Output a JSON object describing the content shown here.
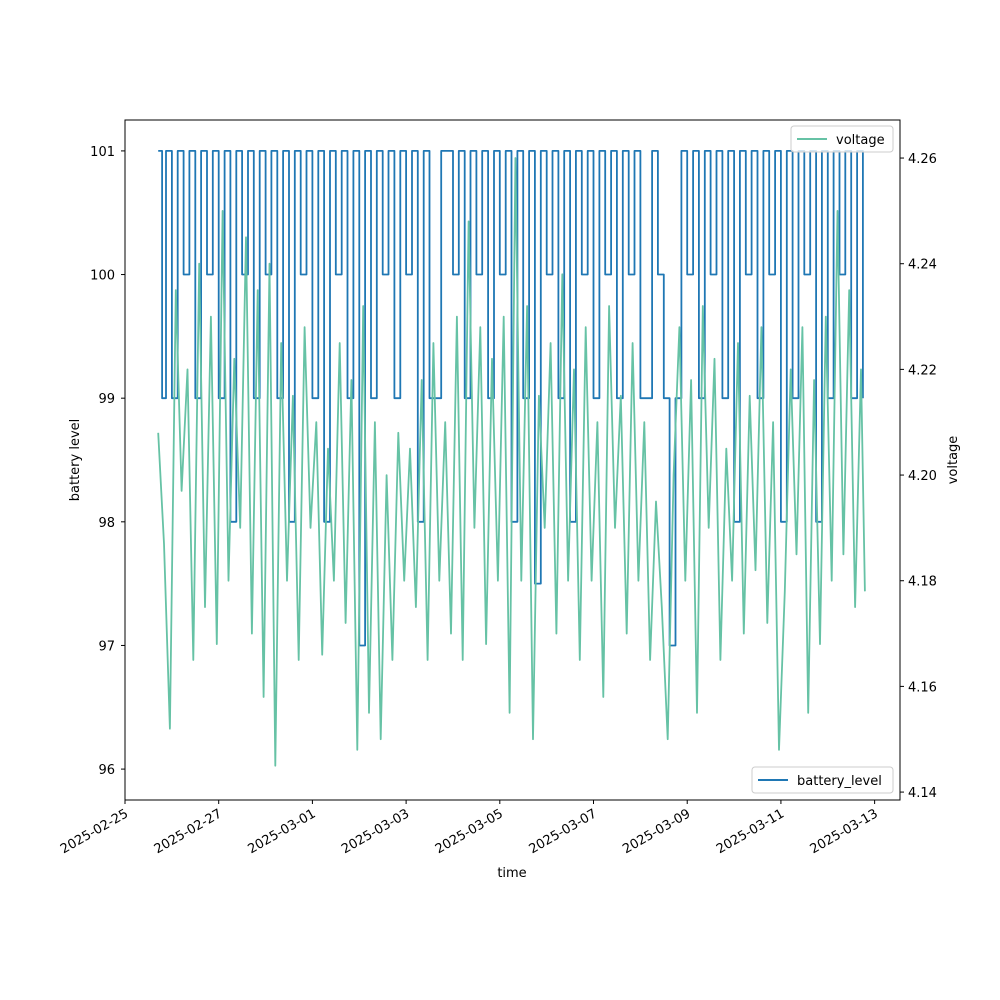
{
  "chart_data": {
    "type": "line",
    "title": "",
    "xlabel": "time",
    "x_tick_labels": [
      "2025-02-25",
      "2025-02-27",
      "2025-03-01",
      "2025-03-03",
      "2025-03-05",
      "2025-03-07",
      "2025-03-09",
      "2025-03-11",
      "2025-03-13"
    ],
    "x_range": [
      "2025-02-25T00:00",
      "2025-03-13T13:00"
    ],
    "left_axis": {
      "label": "battery level",
      "ylim": [
        95.75,
        101.25
      ],
      "ticks": [
        "96",
        "97",
        "98",
        "99",
        "100",
        "101"
      ]
    },
    "right_axis": {
      "label": "voltage",
      "ylim": [
        4.1385,
        4.2672
      ],
      "ticks": [
        "4.14",
        "4.16",
        "4.18",
        "4.20",
        "4.22",
        "4.24",
        "4.26"
      ]
    },
    "series": [
      {
        "name": "battery_level",
        "axis": "left",
        "color": "#1f77b4",
        "legend_position": "lower-right",
        "data": [
          [
            "2025-02-25T17:00",
            101
          ],
          [
            "2025-02-25T19:00",
            99
          ],
          [
            "2025-02-25T21:00",
            101
          ],
          [
            "2025-02-26T00:00",
            99
          ],
          [
            "2025-02-26T03:00",
            101
          ],
          [
            "2025-02-26T06:00",
            100
          ],
          [
            "2025-02-26T09:00",
            101
          ],
          [
            "2025-02-26T12:00",
            99
          ],
          [
            "2025-02-26T15:00",
            101
          ],
          [
            "2025-02-26T18:00",
            100
          ],
          [
            "2025-02-26T21:00",
            101
          ],
          [
            "2025-02-27T00:00",
            99
          ],
          [
            "2025-02-27T03:00",
            101
          ],
          [
            "2025-02-27T06:00",
            98
          ],
          [
            "2025-02-27T09:00",
            101
          ],
          [
            "2025-02-27T12:00",
            100
          ],
          [
            "2025-02-27T15:00",
            101
          ],
          [
            "2025-02-27T18:00",
            99
          ],
          [
            "2025-02-27T21:00",
            101
          ],
          [
            "2025-02-28T00:00",
            100
          ],
          [
            "2025-02-28T03:00",
            101
          ],
          [
            "2025-02-28T06:00",
            99
          ],
          [
            "2025-02-28T09:00",
            101
          ],
          [
            "2025-02-28T12:00",
            98
          ],
          [
            "2025-02-28T15:00",
            101
          ],
          [
            "2025-02-28T18:00",
            100
          ],
          [
            "2025-02-28T21:00",
            101
          ],
          [
            "2025-03-01T00:00",
            99
          ],
          [
            "2025-03-01T03:00",
            101
          ],
          [
            "2025-03-01T06:00",
            98
          ],
          [
            "2025-03-01T09:00",
            101
          ],
          [
            "2025-03-01T12:00",
            100
          ],
          [
            "2025-03-01T15:00",
            101
          ],
          [
            "2025-03-01T18:00",
            99
          ],
          [
            "2025-03-01T21:00",
            101
          ],
          [
            "2025-03-02T00:00",
            97
          ],
          [
            "2025-03-02T03:00",
            101
          ],
          [
            "2025-03-02T06:00",
            99
          ],
          [
            "2025-03-02T09:00",
            101
          ],
          [
            "2025-03-02T12:00",
            100
          ],
          [
            "2025-03-02T15:00",
            101
          ],
          [
            "2025-03-02T18:00",
            99
          ],
          [
            "2025-03-02T21:00",
            101
          ],
          [
            "2025-03-03T00:00",
            100
          ],
          [
            "2025-03-03T03:00",
            101
          ],
          [
            "2025-03-03T06:00",
            98
          ],
          [
            "2025-03-03T09:00",
            101
          ],
          [
            "2025-03-03T12:00",
            99
          ],
          [
            "2025-03-03T18:00",
            101
          ],
          [
            "2025-03-04T00:00",
            100
          ],
          [
            "2025-03-04T03:00",
            101
          ],
          [
            "2025-03-04T06:00",
            99
          ],
          [
            "2025-03-04T09:00",
            101
          ],
          [
            "2025-03-04T12:00",
            100
          ],
          [
            "2025-03-04T15:00",
            101
          ],
          [
            "2025-03-04T18:00",
            99
          ],
          [
            "2025-03-04T21:00",
            101
          ],
          [
            "2025-03-05T00:00",
            100
          ],
          [
            "2025-03-05T03:00",
            101
          ],
          [
            "2025-03-05T06:00",
            98
          ],
          [
            "2025-03-05T09:00",
            101
          ],
          [
            "2025-03-05T12:00",
            99
          ],
          [
            "2025-03-05T15:00",
            101
          ],
          [
            "2025-03-05T18:00",
            97.5
          ],
          [
            "2025-03-05T21:00",
            101
          ],
          [
            "2025-03-06T00:00",
            100
          ],
          [
            "2025-03-06T03:00",
            101
          ],
          [
            "2025-03-06T06:00",
            99
          ],
          [
            "2025-03-06T09:00",
            101
          ],
          [
            "2025-03-06T12:00",
            98
          ],
          [
            "2025-03-06T15:00",
            101
          ],
          [
            "2025-03-06T18:00",
            100
          ],
          [
            "2025-03-06T21:00",
            101
          ],
          [
            "2025-03-07T00:00",
            99
          ],
          [
            "2025-03-07T03:00",
            101
          ],
          [
            "2025-03-07T06:00",
            100
          ],
          [
            "2025-03-07T09:00",
            101
          ],
          [
            "2025-03-07T12:00",
            99
          ],
          [
            "2025-03-07T15:00",
            101
          ],
          [
            "2025-03-07T18:00",
            100
          ],
          [
            "2025-03-07T21:00",
            101
          ],
          [
            "2025-03-08T00:00",
            99
          ],
          [
            "2025-03-08T06:00",
            101
          ],
          [
            "2025-03-08T09:00",
            100
          ],
          [
            "2025-03-08T12:00",
            99
          ],
          [
            "2025-03-08T15:00",
            97
          ],
          [
            "2025-03-08T18:00",
            99
          ],
          [
            "2025-03-08T21:00",
            101
          ],
          [
            "2025-03-09T00:00",
            100
          ],
          [
            "2025-03-09T03:00",
            101
          ],
          [
            "2025-03-09T06:00",
            99
          ],
          [
            "2025-03-09T09:00",
            101
          ],
          [
            "2025-03-09T12:00",
            100
          ],
          [
            "2025-03-09T15:00",
            101
          ],
          [
            "2025-03-09T18:00",
            99
          ],
          [
            "2025-03-09T21:00",
            101
          ],
          [
            "2025-03-10T00:00",
            98
          ],
          [
            "2025-03-10T03:00",
            101
          ],
          [
            "2025-03-10T06:00",
            100
          ],
          [
            "2025-03-10T09:00",
            101
          ],
          [
            "2025-03-10T12:00",
            99
          ],
          [
            "2025-03-10T15:00",
            101
          ],
          [
            "2025-03-10T18:00",
            100
          ],
          [
            "2025-03-10T21:00",
            101
          ],
          [
            "2025-03-11T00:00",
            98
          ],
          [
            "2025-03-11T03:00",
            101
          ],
          [
            "2025-03-11T06:00",
            99
          ],
          [
            "2025-03-11T09:00",
            101
          ],
          [
            "2025-03-11T12:00",
            100
          ],
          [
            "2025-03-11T15:00",
            101
          ],
          [
            "2025-03-11T18:00",
            98
          ],
          [
            "2025-03-11T21:00",
            101
          ],
          [
            "2025-03-12T00:00",
            99
          ],
          [
            "2025-03-12T03:00",
            101
          ],
          [
            "2025-03-12T06:00",
            100
          ],
          [
            "2025-03-12T09:00",
            101
          ],
          [
            "2025-03-12T12:00",
            99
          ],
          [
            "2025-03-12T15:00",
            101
          ],
          [
            "2025-03-12T18:00",
            99
          ]
        ]
      },
      {
        "name": "voltage",
        "axis": "right",
        "color": "#66c2a5",
        "legend_position": "upper-right",
        "data": [
          [
            "2025-02-25T17:00",
            4.208
          ],
          [
            "2025-02-25T20:00",
            4.187
          ],
          [
            "2025-02-25T23:00",
            4.152
          ],
          [
            "2025-02-26T02:00",
            4.235
          ],
          [
            "2025-02-26T05:00",
            4.197
          ],
          [
            "2025-02-26T08:00",
            4.22
          ],
          [
            "2025-02-26T11:00",
            4.165
          ],
          [
            "2025-02-26T14:00",
            4.24
          ],
          [
            "2025-02-26T17:00",
            4.175
          ],
          [
            "2025-02-26T20:00",
            4.23
          ],
          [
            "2025-02-26T23:00",
            4.168
          ],
          [
            "2025-02-27T02:00",
            4.25
          ],
          [
            "2025-02-27T05:00",
            4.18
          ],
          [
            "2025-02-27T08:00",
            4.222
          ],
          [
            "2025-02-27T11:00",
            4.19
          ],
          [
            "2025-02-27T14:00",
            4.245
          ],
          [
            "2025-02-27T17:00",
            4.17
          ],
          [
            "2025-02-27T20:00",
            4.235
          ],
          [
            "2025-02-27T23:00",
            4.158
          ],
          [
            "2025-02-28T02:00",
            4.24
          ],
          [
            "2025-02-28T05:00",
            4.145
          ],
          [
            "2025-02-28T08:00",
            4.225
          ],
          [
            "2025-02-28T11:00",
            4.18
          ],
          [
            "2025-02-28T14:00",
            4.215
          ],
          [
            "2025-02-28T17:00",
            4.165
          ],
          [
            "2025-02-28T20:00",
            4.228
          ],
          [
            "2025-02-28T23:00",
            4.19
          ],
          [
            "2025-03-01T02:00",
            4.21
          ],
          [
            "2025-03-01T05:00",
            4.166
          ],
          [
            "2025-03-01T08:00",
            4.205
          ],
          [
            "2025-03-01T11:00",
            4.18
          ],
          [
            "2025-03-01T14:00",
            4.225
          ],
          [
            "2025-03-01T17:00",
            4.172
          ],
          [
            "2025-03-01T20:00",
            4.218
          ],
          [
            "2025-03-01T23:00",
            4.148
          ],
          [
            "2025-03-02T02:00",
            4.232
          ],
          [
            "2025-03-02T05:00",
            4.155
          ],
          [
            "2025-03-02T08:00",
            4.21
          ],
          [
            "2025-03-02T11:00",
            4.15
          ],
          [
            "2025-03-02T14:00",
            4.2
          ],
          [
            "2025-03-02T17:00",
            4.165
          ],
          [
            "2025-03-02T20:00",
            4.208
          ],
          [
            "2025-03-02T23:00",
            4.18
          ],
          [
            "2025-03-03T02:00",
            4.205
          ],
          [
            "2025-03-03T05:00",
            4.175
          ],
          [
            "2025-03-03T08:00",
            4.218
          ],
          [
            "2025-03-03T11:00",
            4.165
          ],
          [
            "2025-03-03T14:00",
            4.225
          ],
          [
            "2025-03-03T17:00",
            4.18
          ],
          [
            "2025-03-03T20:00",
            4.21
          ],
          [
            "2025-03-03T23:00",
            4.17
          ],
          [
            "2025-03-04T02:00",
            4.23
          ],
          [
            "2025-03-04T05:00",
            4.165
          ],
          [
            "2025-03-04T08:00",
            4.248
          ],
          [
            "2025-03-04T11:00",
            4.19
          ],
          [
            "2025-03-04T14:00",
            4.228
          ],
          [
            "2025-03-04T17:00",
            4.168
          ],
          [
            "2025-03-04T20:00",
            4.222
          ],
          [
            "2025-03-04T23:00",
            4.18
          ],
          [
            "2025-03-05T02:00",
            4.23
          ],
          [
            "2025-03-05T05:00",
            4.155
          ],
          [
            "2025-03-05T08:00",
            4.26
          ],
          [
            "2025-03-05T11:00",
            4.18
          ],
          [
            "2025-03-05T14:00",
            4.232
          ],
          [
            "2025-03-05T17:00",
            4.15
          ],
          [
            "2025-03-05T20:00",
            4.215
          ],
          [
            "2025-03-05T23:00",
            4.19
          ],
          [
            "2025-03-06T02:00",
            4.225
          ],
          [
            "2025-03-06T05:00",
            4.17
          ],
          [
            "2025-03-06T08:00",
            4.238
          ],
          [
            "2025-03-06T11:00",
            4.18
          ],
          [
            "2025-03-06T14:00",
            4.22
          ],
          [
            "2025-03-06T17:00",
            4.165
          ],
          [
            "2025-03-06T20:00",
            4.228
          ],
          [
            "2025-03-06T23:00",
            4.18
          ],
          [
            "2025-03-07T02:00",
            4.21
          ],
          [
            "2025-03-07T05:00",
            4.158
          ],
          [
            "2025-03-07T08:00",
            4.232
          ],
          [
            "2025-03-07T11:00",
            4.19
          ],
          [
            "2025-03-07T14:00",
            4.215
          ],
          [
            "2025-03-07T17:00",
            4.17
          ],
          [
            "2025-03-07T20:00",
            4.225
          ],
          [
            "2025-03-07T23:00",
            4.18
          ],
          [
            "2025-03-08T02:00",
            4.21
          ],
          [
            "2025-03-08T05:00",
            4.165
          ],
          [
            "2025-03-08T08:00",
            4.195
          ],
          [
            "2025-03-08T11:00",
            4.175
          ],
          [
            "2025-03-08T14:00",
            4.15
          ],
          [
            "2025-03-08T17:00",
            4.2
          ],
          [
            "2025-03-08T20:00",
            4.228
          ],
          [
            "2025-03-08T23:00",
            4.18
          ],
          [
            "2025-03-09T02:00",
            4.218
          ],
          [
            "2025-03-09T05:00",
            4.155
          ],
          [
            "2025-03-09T08:00",
            4.232
          ],
          [
            "2025-03-09T11:00",
            4.19
          ],
          [
            "2025-03-09T14:00",
            4.222
          ],
          [
            "2025-03-09T17:00",
            4.165
          ],
          [
            "2025-03-09T20:00",
            4.205
          ],
          [
            "2025-03-09T23:00",
            4.18
          ],
          [
            "2025-03-10T02:00",
            4.225
          ],
          [
            "2025-03-10T05:00",
            4.17
          ],
          [
            "2025-03-10T08:00",
            4.215
          ],
          [
            "2025-03-10T11:00",
            4.182
          ],
          [
            "2025-03-10T14:00",
            4.228
          ],
          [
            "2025-03-10T17:00",
            4.172
          ],
          [
            "2025-03-10T20:00",
            4.21
          ],
          [
            "2025-03-10T23:00",
            4.148
          ],
          [
            "2025-03-11T02:00",
            4.178
          ],
          [
            "2025-03-11T05:00",
            4.22
          ],
          [
            "2025-03-11T08:00",
            4.185
          ],
          [
            "2025-03-11T11:00",
            4.228
          ],
          [
            "2025-03-11T14:00",
            4.155
          ],
          [
            "2025-03-11T17:00",
            4.218
          ],
          [
            "2025-03-11T20:00",
            4.168
          ],
          [
            "2025-03-11T23:00",
            4.23
          ],
          [
            "2025-03-12T02:00",
            4.18
          ],
          [
            "2025-03-12T05:00",
            4.25
          ],
          [
            "2025-03-12T08:00",
            4.185
          ],
          [
            "2025-03-12T11:00",
            4.235
          ],
          [
            "2025-03-12T14:00",
            4.175
          ],
          [
            "2025-03-12T17:00",
            4.22
          ],
          [
            "2025-03-12T19:00",
            4.178
          ]
        ]
      }
    ]
  }
}
